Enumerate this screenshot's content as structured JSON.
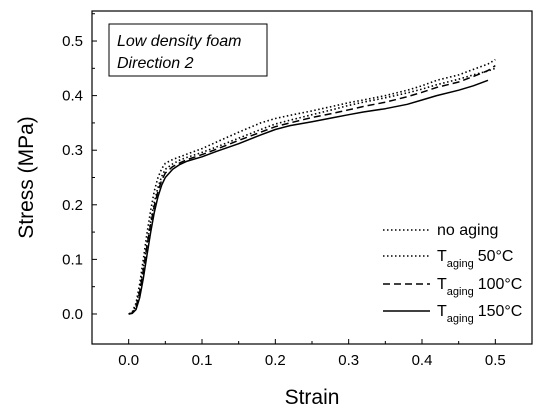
{
  "chart_data": {
    "type": "line",
    "xlabel": "Strain",
    "ylabel": "Stress (MPa)",
    "xlim": [
      -0.05,
      0.55
    ],
    "ylim": [
      -0.055,
      0.555
    ],
    "xticks": [
      "0.0",
      "0.1",
      "0.2",
      "0.3",
      "0.4",
      "0.5"
    ],
    "yticks": [
      "0.0",
      "0.1",
      "0.2",
      "0.3",
      "0.4",
      "0.5"
    ],
    "grid": false,
    "annotation": [
      "Low density foam",
      "Direction 2"
    ],
    "legend_position": "bottom-right",
    "series": [
      {
        "name": "no aging",
        "name_sub": "",
        "name_suffix": "",
        "style": "dotted",
        "points": [
          [
            0.0,
            0.0
          ],
          [
            0.005,
            0.002
          ],
          [
            0.01,
            0.015
          ],
          [
            0.015,
            0.045
          ],
          [
            0.02,
            0.085
          ],
          [
            0.025,
            0.13
          ],
          [
            0.03,
            0.17
          ],
          [
            0.035,
            0.205
          ],
          [
            0.04,
            0.232
          ],
          [
            0.045,
            0.252
          ],
          [
            0.05,
            0.265
          ],
          [
            0.06,
            0.275
          ],
          [
            0.07,
            0.282
          ],
          [
            0.08,
            0.287
          ],
          [
            0.1,
            0.296
          ],
          [
            0.12,
            0.306
          ],
          [
            0.15,
            0.322
          ],
          [
            0.18,
            0.338
          ],
          [
            0.2,
            0.348
          ],
          [
            0.22,
            0.355
          ],
          [
            0.25,
            0.365
          ],
          [
            0.28,
            0.375
          ],
          [
            0.3,
            0.382
          ],
          [
            0.32,
            0.388
          ],
          [
            0.35,
            0.396
          ],
          [
            0.38,
            0.405
          ],
          [
            0.4,
            0.412
          ],
          [
            0.42,
            0.42
          ],
          [
            0.45,
            0.43
          ],
          [
            0.47,
            0.438
          ],
          [
            0.49,
            0.445
          ],
          [
            0.5,
            0.45
          ]
        ]
      },
      {
        "name": "T",
        "name_sub": "aging",
        "name_suffix": "50°C",
        "style": "dotted",
        "points": [
          [
            0.0,
            0.0
          ],
          [
            0.005,
            0.004
          ],
          [
            0.01,
            0.02
          ],
          [
            0.015,
            0.055
          ],
          [
            0.02,
            0.1
          ],
          [
            0.025,
            0.148
          ],
          [
            0.03,
            0.19
          ],
          [
            0.035,
            0.225
          ],
          [
            0.04,
            0.25
          ],
          [
            0.045,
            0.266
          ],
          [
            0.05,
            0.276
          ],
          [
            0.06,
            0.283
          ],
          [
            0.07,
            0.288
          ],
          [
            0.08,
            0.293
          ],
          [
            0.1,
            0.303
          ],
          [
            0.12,
            0.315
          ],
          [
            0.15,
            0.333
          ],
          [
            0.18,
            0.35
          ],
          [
            0.2,
            0.358
          ],
          [
            0.22,
            0.364
          ],
          [
            0.25,
            0.372
          ],
          [
            0.28,
            0.381
          ],
          [
            0.3,
            0.387
          ],
          [
            0.32,
            0.392
          ],
          [
            0.35,
            0.4
          ],
          [
            0.38,
            0.41
          ],
          [
            0.4,
            0.418
          ],
          [
            0.42,
            0.428
          ],
          [
            0.45,
            0.438
          ],
          [
            0.47,
            0.448
          ],
          [
            0.49,
            0.458
          ],
          [
            0.5,
            0.466
          ]
        ]
      },
      {
        "name": "T",
        "name_sub": "aging",
        "name_suffix": "100°C",
        "style": "dashed",
        "points": [
          [
            0.0,
            0.0
          ],
          [
            0.005,
            0.002
          ],
          [
            0.01,
            0.012
          ],
          [
            0.015,
            0.04
          ],
          [
            0.02,
            0.08
          ],
          [
            0.025,
            0.125
          ],
          [
            0.03,
            0.165
          ],
          [
            0.035,
            0.198
          ],
          [
            0.04,
            0.225
          ],
          [
            0.045,
            0.245
          ],
          [
            0.05,
            0.258
          ],
          [
            0.06,
            0.27
          ],
          [
            0.07,
            0.277
          ],
          [
            0.08,
            0.283
          ],
          [
            0.1,
            0.292
          ],
          [
            0.12,
            0.302
          ],
          [
            0.15,
            0.318
          ],
          [
            0.18,
            0.333
          ],
          [
            0.2,
            0.343
          ],
          [
            0.22,
            0.35
          ],
          [
            0.25,
            0.36
          ],
          [
            0.28,
            0.368
          ],
          [
            0.3,
            0.374
          ],
          [
            0.32,
            0.38
          ],
          [
            0.35,
            0.388
          ],
          [
            0.38,
            0.398
          ],
          [
            0.4,
            0.406
          ],
          [
            0.42,
            0.415
          ],
          [
            0.45,
            0.425
          ],
          [
            0.47,
            0.435
          ],
          [
            0.49,
            0.446
          ],
          [
            0.5,
            0.455
          ]
        ]
      },
      {
        "name": "T",
        "name_sub": "aging",
        "name_suffix": "150°C",
        "style": "solid",
        "points": [
          [
            0.0,
            0.0
          ],
          [
            0.005,
            0.001
          ],
          [
            0.01,
            0.008
          ],
          [
            0.015,
            0.03
          ],
          [
            0.02,
            0.065
          ],
          [
            0.025,
            0.108
          ],
          [
            0.03,
            0.15
          ],
          [
            0.035,
            0.186
          ],
          [
            0.04,
            0.215
          ],
          [
            0.045,
            0.236
          ],
          [
            0.05,
            0.25
          ],
          [
            0.06,
            0.265
          ],
          [
            0.07,
            0.274
          ],
          [
            0.08,
            0.28
          ],
          [
            0.1,
            0.288
          ],
          [
            0.12,
            0.298
          ],
          [
            0.15,
            0.312
          ],
          [
            0.18,
            0.328
          ],
          [
            0.2,
            0.338
          ],
          [
            0.22,
            0.345
          ],
          [
            0.25,
            0.352
          ],
          [
            0.28,
            0.36
          ],
          [
            0.3,
            0.365
          ],
          [
            0.32,
            0.37
          ],
          [
            0.35,
            0.376
          ],
          [
            0.38,
            0.384
          ],
          [
            0.4,
            0.392
          ],
          [
            0.42,
            0.4
          ],
          [
            0.45,
            0.41
          ],
          [
            0.47,
            0.418
          ],
          [
            0.48,
            0.423
          ],
          [
            0.49,
            0.428
          ]
        ]
      }
    ]
  }
}
